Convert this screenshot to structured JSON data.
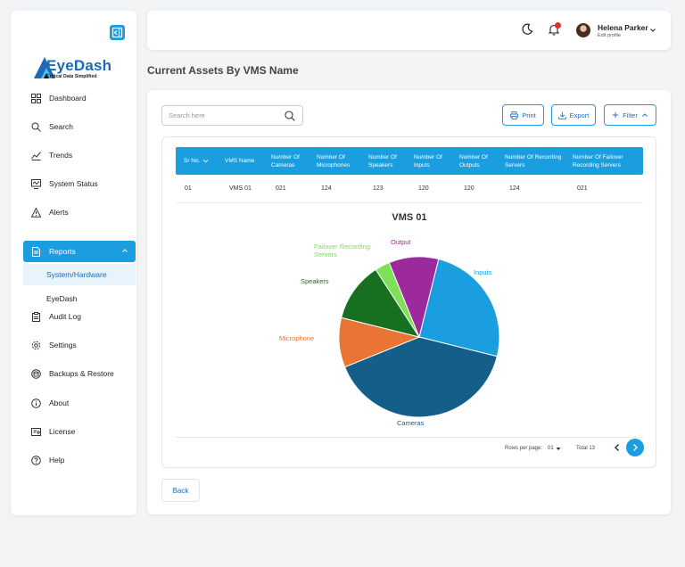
{
  "sidebar": {
    "brand": {
      "name": "EyeDash",
      "tagline": "Critical Data Simplified"
    },
    "items": [
      {
        "label": "Dashboard",
        "icon": "grid-icon"
      },
      {
        "label": "Search",
        "icon": "search-icon"
      },
      {
        "label": "Trends",
        "icon": "trend-icon"
      },
      {
        "label": "System Status",
        "icon": "monitor-icon"
      },
      {
        "label": "Alerts",
        "icon": "warning-icon"
      },
      {
        "label": "Reports",
        "icon": "document-icon",
        "active": true
      },
      {
        "label": "Audit Log",
        "icon": "clipboard-icon"
      },
      {
        "label": "Settings",
        "icon": "gear-icon"
      },
      {
        "label": "Backups & Restore",
        "icon": "database-icon"
      },
      {
        "label": "About",
        "icon": "info-icon"
      },
      {
        "label": "License",
        "icon": "license-icon"
      },
      {
        "label": "Help",
        "icon": "help-icon"
      }
    ],
    "report_subitems": [
      {
        "label": "System/Hardware",
        "active": true
      },
      {
        "label": "EyeDash"
      }
    ]
  },
  "header": {
    "user_name": "Helena Parker",
    "user_subtitle": "Edit profile"
  },
  "page": {
    "title": "Current Assets By VMS Name"
  },
  "toolbar": {
    "search_placeholder": "Search here",
    "print_label": "Print",
    "export_label": "Export",
    "filter_label": "Filter"
  },
  "table": {
    "columns": [
      "Sr No.",
      "VMS Name",
      "Number Of Cameras",
      "Number Of Microphones",
      "Number Of Speakers",
      "Number Of Inputs",
      "Number Of Outputs",
      "Number Of Recording Servers",
      "Number Of Failover Recording Servers"
    ],
    "rows": [
      [
        "01",
        "VMS 01",
        "021",
        "124",
        "123",
        "120",
        "120",
        "124",
        "021"
      ]
    ]
  },
  "chart_data": {
    "type": "pie",
    "title": "VMS 01",
    "categories": [
      "Inputs",
      "Cameras",
      "Microphone",
      "Speakers",
      "Failover Recording Servers",
      "Output"
    ],
    "values": [
      25,
      40,
      10,
      12,
      3,
      10
    ],
    "colors": [
      "#1a9ee0",
      "#135f8a",
      "#ea7433",
      "#16701f",
      "#7de057",
      "#9c2a9c"
    ],
    "legend": "none"
  },
  "pagination": {
    "rows_per_page_label": "Rows per page:",
    "rows_per_page_value": "01",
    "total_label": "Total 13"
  },
  "footer": {
    "back_label": "Back"
  },
  "colors": {
    "accent": "#1a9ee0",
    "sidebar_bg": "#ffffff",
    "page_bg": "#f3f4f6"
  }
}
